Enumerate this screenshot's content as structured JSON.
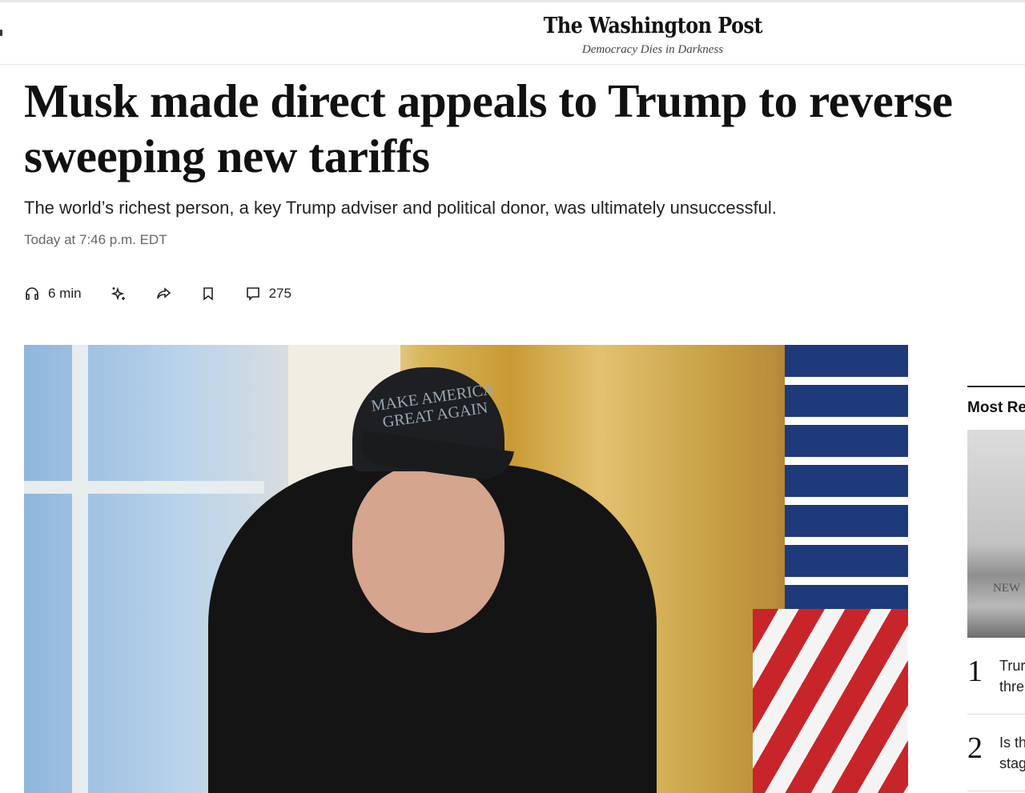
{
  "header": {
    "logo": "The Washington Post",
    "tagline": "Democracy Dies in Darkness"
  },
  "article": {
    "headline": "Musk made direct appeals to Trump to reverse sweeping new tariffs",
    "dek": "The world’s richest person, a key Trump adviser and political donor, was ultimately unsuccessful.",
    "timestamp": "Today at 7:46 p.m. EDT",
    "actions": {
      "listen": "6 min",
      "comments": "275"
    },
    "photo": {
      "cap_text": "MAKE AMERICA GREAT AGAIN"
    }
  },
  "sidebar": {
    "title": "Most Re",
    "image_text": "NEW",
    "items": [
      {
        "num": "1",
        "text": "Trur\nthre"
      },
      {
        "num": "2",
        "text": "Is th\nstag"
      }
    ]
  },
  "icons": [
    "headphones-icon",
    "sparkle-icon",
    "share-icon",
    "bookmark-icon",
    "comment-icon"
  ]
}
